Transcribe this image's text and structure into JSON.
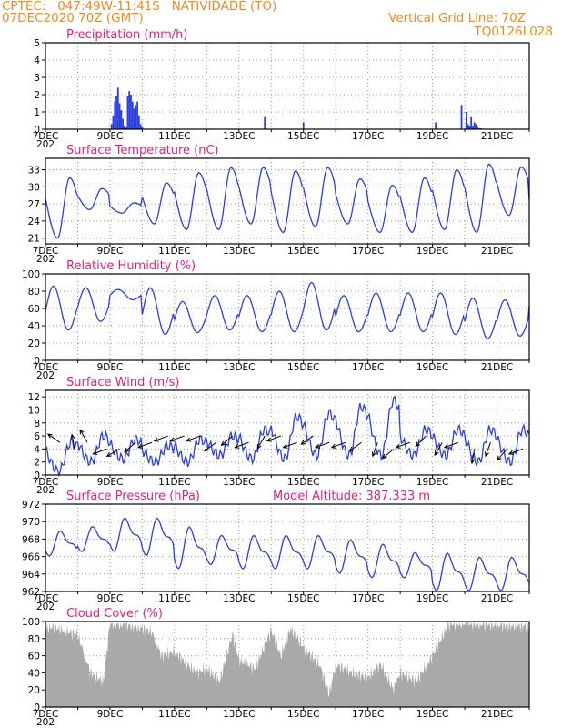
{
  "header": {
    "line1": "CPTEC:   047:49W-11:41S   NATIVIDADE (TO)",
    "line2": "07DEC2020 70Z (GMT)",
    "right1": "Vertical Grid Line: 70Z",
    "right2": "TQ0126L028"
  },
  "colors": {
    "line": "#2a3fe0",
    "bar": "#2a3fe0",
    "cloud": "#a9a9a9",
    "title": "#e0207f",
    "header": "#ee8a1f",
    "grid": "#999999"
  },
  "x_ticks": [
    "7DEC",
    "9DEC",
    "11DEC",
    "13DEC",
    "15DEC",
    "17DEC",
    "19DEC",
    "21DEC"
  ],
  "x_sub": "202",
  "chart_data": [
    {
      "id": "precip",
      "type": "bar",
      "title": "Precipitation (mm/h)",
      "ylim": [
        0,
        5
      ],
      "yticks": [
        "0",
        "1",
        "2",
        "3",
        "4",
        "5"
      ],
      "xlim_days": [
        0,
        15
      ],
      "x": [
        2.05,
        2.1,
        2.15,
        2.2,
        2.25,
        2.3,
        2.35,
        2.4,
        2.45,
        2.5,
        2.55,
        2.6,
        2.65,
        2.7,
        2.75,
        2.8,
        2.85,
        2.9,
        2.95,
        3.0,
        6.8,
        8.0,
        12.1,
        12.9,
        13.05,
        13.1,
        13.15,
        13.2,
        13.25,
        13.3,
        13.35,
        13.4,
        13.45,
        13.5
      ],
      "values": [
        0.3,
        0.8,
        1.6,
        1.9,
        2.4,
        1.5,
        1.1,
        0.6,
        0.2,
        0.1,
        1.9,
        2.2,
        2.0,
        1.6,
        1.2,
        1.4,
        1.6,
        0.8,
        0.3,
        0.1,
        0.7,
        0.4,
        0.4,
        1.4,
        1.0,
        0.3,
        0.2,
        0.7,
        0.2,
        0.4,
        0.3,
        0.1,
        0.05,
        0.05
      ]
    },
    {
      "id": "temp",
      "type": "line",
      "title": "Surface Temperature (nC)",
      "ylim": [
        20,
        35
      ],
      "yticks": [
        "21",
        "24",
        "27",
        "30",
        "33"
      ],
      "xlim_days": [
        0,
        15
      ],
      "min_day": [
        21.0,
        26,
        25.4,
        23.5,
        22.5,
        22.5,
        23.5,
        22.0,
        23.0,
        23.5,
        22.0,
        22.0,
        22.5,
        22.0,
        25.0,
        23.0
      ],
      "max_day": [
        31.6,
        29.7,
        27.2,
        30.7,
        32.5,
        33.4,
        33.4,
        32.8,
        33.4,
        31.4,
        30.3,
        31.6,
        33.0,
        34.0,
        33.5,
        30.0
      ]
    },
    {
      "id": "rh",
      "type": "line",
      "title": "Relative Humidity (%)",
      "ylim": [
        0,
        100
      ],
      "yticks": [
        "0",
        "20",
        "40",
        "60",
        "80",
        "100"
      ],
      "xlim_days": [
        0,
        15
      ],
      "min_day": [
        35,
        45,
        70,
        30,
        32,
        35,
        33,
        33,
        35,
        33,
        33,
        33,
        30,
        25,
        28,
        40,
        40
      ],
      "max_day": [
        86,
        84,
        82,
        84,
        68,
        75,
        75,
        80,
        90,
        75,
        78,
        78,
        78,
        72,
        70,
        95,
        60
      ]
    },
    {
      "id": "wind",
      "type": "line",
      "title": "Surface Wind (m/s)",
      "ylim": [
        0,
        13
      ],
      "yticks": [
        "0",
        "2",
        "4",
        "6",
        "8",
        "10",
        "12"
      ],
      "xlim_days": [
        0,
        15
      ],
      "min_day": [
        0.5,
        2,
        2.5,
        2,
        2,
        3,
        2.5,
        2.5,
        3,
        3,
        3,
        3,
        3,
        2,
        2,
        2.5
      ],
      "max_day": [
        5,
        6,
        5.5,
        4.5,
        5.5,
        6,
        7,
        9,
        9.5,
        10.5,
        11.5,
        7,
        7,
        7,
        7,
        7
      ],
      "arrows": [
        {
          "d": 0.45,
          "s": 5,
          "ang": 145
        },
        {
          "d": 0.9,
          "s": 4,
          "ang": 100
        },
        {
          "d": 1.3,
          "s": 5,
          "ang": 120
        },
        {
          "d": 1.9,
          "s": 4,
          "ang": 200
        },
        {
          "d": 2.3,
          "s": 4,
          "ang": 210
        },
        {
          "d": 2.8,
          "s": 5,
          "ang": 220
        },
        {
          "d": 3.3,
          "s": 5,
          "ang": 200
        },
        {
          "d": 3.8,
          "s": 6,
          "ang": 200
        },
        {
          "d": 4.3,
          "s": 6,
          "ang": 200
        },
        {
          "d": 4.8,
          "s": 6,
          "ang": 200
        },
        {
          "d": 5.3,
          "s": 5,
          "ang": 215
        },
        {
          "d": 5.8,
          "s": 6,
          "ang": 220
        },
        {
          "d": 6.3,
          "s": 5,
          "ang": 200
        },
        {
          "d": 6.8,
          "s": 6,
          "ang": 240
        },
        {
          "d": 7.3,
          "s": 6,
          "ang": 200
        },
        {
          "d": 7.8,
          "s": 5,
          "ang": 200
        },
        {
          "d": 8.3,
          "s": 6,
          "ang": 215
        },
        {
          "d": 8.8,
          "s": 5,
          "ang": 200
        },
        {
          "d": 9.3,
          "s": 5,
          "ang": 200
        },
        {
          "d": 9.8,
          "s": 5,
          "ang": 215
        },
        {
          "d": 10.3,
          "s": 5,
          "ang": 250
        },
        {
          "d": 10.8,
          "s": 4,
          "ang": 220
        },
        {
          "d": 11.3,
          "s": 5,
          "ang": 200
        },
        {
          "d": 11.8,
          "s": 6,
          "ang": 225
        },
        {
          "d": 12.3,
          "s": 5,
          "ang": 240
        },
        {
          "d": 12.8,
          "s": 5,
          "ang": 200
        },
        {
          "d": 13.3,
          "s": 4,
          "ang": 260
        },
        {
          "d": 13.8,
          "s": 5,
          "ang": 250
        },
        {
          "d": 14.3,
          "s": 4,
          "ang": 230
        },
        {
          "d": 14.8,
          "s": 4,
          "ang": 200
        }
      ]
    },
    {
      "id": "pres",
      "type": "line",
      "title": "Surface Pressure (hPa)",
      "subtitle": "Model Altitude: 387.333 m",
      "ylim": [
        962,
        972
      ],
      "yticks": [
        "962",
        "964",
        "966",
        "968",
        "970",
        "972"
      ],
      "xlim_days": [
        0,
        15
      ],
      "max_day": [
        969,
        969.5,
        970.5,
        970.5,
        969.5,
        968.5,
        968.5,
        968.5,
        968.5,
        968,
        967.5,
        966.5,
        966.5,
        966,
        966,
        966.5
      ],
      "min_day": [
        966,
        966.5,
        966.5,
        966,
        964.5,
        965,
        964.5,
        964.5,
        964.5,
        964,
        963.5,
        963.5,
        962,
        962,
        962,
        962
      ]
    },
    {
      "id": "cloud",
      "type": "area",
      "title": "Cloud Cover (%)",
      "ylim": [
        0,
        100
      ],
      "yticks": [
        "0",
        "20",
        "40",
        "60",
        "80",
        "100"
      ],
      "xlim_days": [
        0,
        15
      ],
      "x": [
        0,
        0.25,
        0.5,
        1.0,
        1.4,
        1.6,
        1.8,
        2.0,
        2.5,
        3.0,
        3.3,
        3.6,
        4.0,
        4.4,
        4.7,
        5.0,
        5.4,
        5.8,
        6.0,
        6.5,
        7.0,
        7.3,
        7.6,
        8.0,
        8.5,
        8.8,
        9.0,
        9.5,
        10.0,
        10.4,
        10.8,
        11.0,
        11.5,
        12.0,
        12.5,
        13.0,
        13.5,
        14.0,
        14.5,
        15.0
      ],
      "values": [
        92,
        94,
        90,
        85,
        40,
        35,
        30,
        98,
        96,
        92,
        88,
        60,
        65,
        50,
        40,
        45,
        30,
        85,
        55,
        45,
        90,
        60,
        92,
        70,
        50,
        15,
        50,
        40,
        35,
        50,
        20,
        40,
        30,
        60,
        97,
        98,
        97,
        96,
        95,
        95
      ]
    }
  ]
}
